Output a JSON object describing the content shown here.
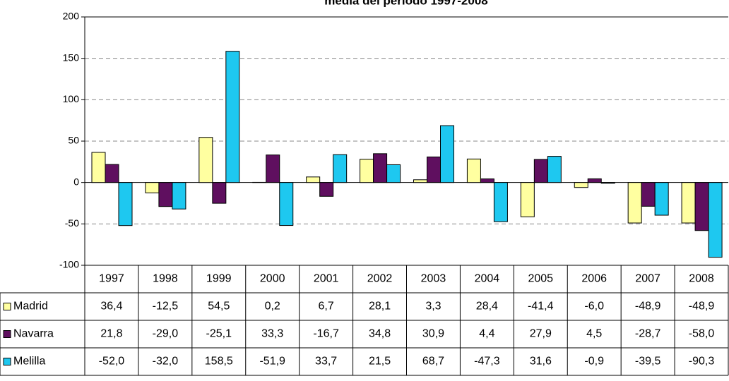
{
  "chart_data": {
    "type": "bar",
    "title": "media del periodo 1997-2008",
    "categories": [
      "1997",
      "1998",
      "1999",
      "2000",
      "2001",
      "2002",
      "2003",
      "2004",
      "2005",
      "2006",
      "2007",
      "2008"
    ],
    "series": [
      {
        "name": "Madrid",
        "color": "#ffffa0",
        "values": [
          36.4,
          -12.5,
          54.5,
          0.2,
          6.7,
          28.1,
          3.3,
          28.4,
          -41.4,
          -6.0,
          -48.9,
          -48.9
        ],
        "value_labels": [
          "36,4",
          "-12,5",
          "54,5",
          "0,2",
          "6,7",
          "28,1",
          "3,3",
          "28,4",
          "-41,4",
          "-6,0",
          "-48,9",
          "-48,9"
        ]
      },
      {
        "name": "Navarra",
        "color": "#5f0f5f",
        "values": [
          21.8,
          -29.0,
          -25.1,
          33.3,
          -16.7,
          34.8,
          30.9,
          4.4,
          27.9,
          4.5,
          -28.7,
          -58.0
        ],
        "value_labels": [
          "21,8",
          "-29,0",
          "-25,1",
          "33,3",
          "-16,7",
          "34,8",
          "30,9",
          "4,4",
          "27,9",
          "4,5",
          "-28,7",
          "-58,0"
        ]
      },
      {
        "name": "Melilla",
        "color": "#1ec8f0",
        "values": [
          -52.0,
          -32.0,
          158.5,
          -51.9,
          33.7,
          21.5,
          68.7,
          -47.3,
          31.6,
          -0.9,
          -39.5,
          -90.3
        ],
        "value_labels": [
          "-52,0",
          "-32,0",
          "158,5",
          "-51,9",
          "33,7",
          "21,5",
          "68,7",
          "-47,3",
          "31,6",
          "-0,9",
          "-39,5",
          "-90,3"
        ]
      }
    ],
    "ylim": [
      -100,
      200
    ],
    "yticks": [
      -100,
      -50,
      0,
      50,
      100,
      150,
      200
    ],
    "grid": true
  }
}
